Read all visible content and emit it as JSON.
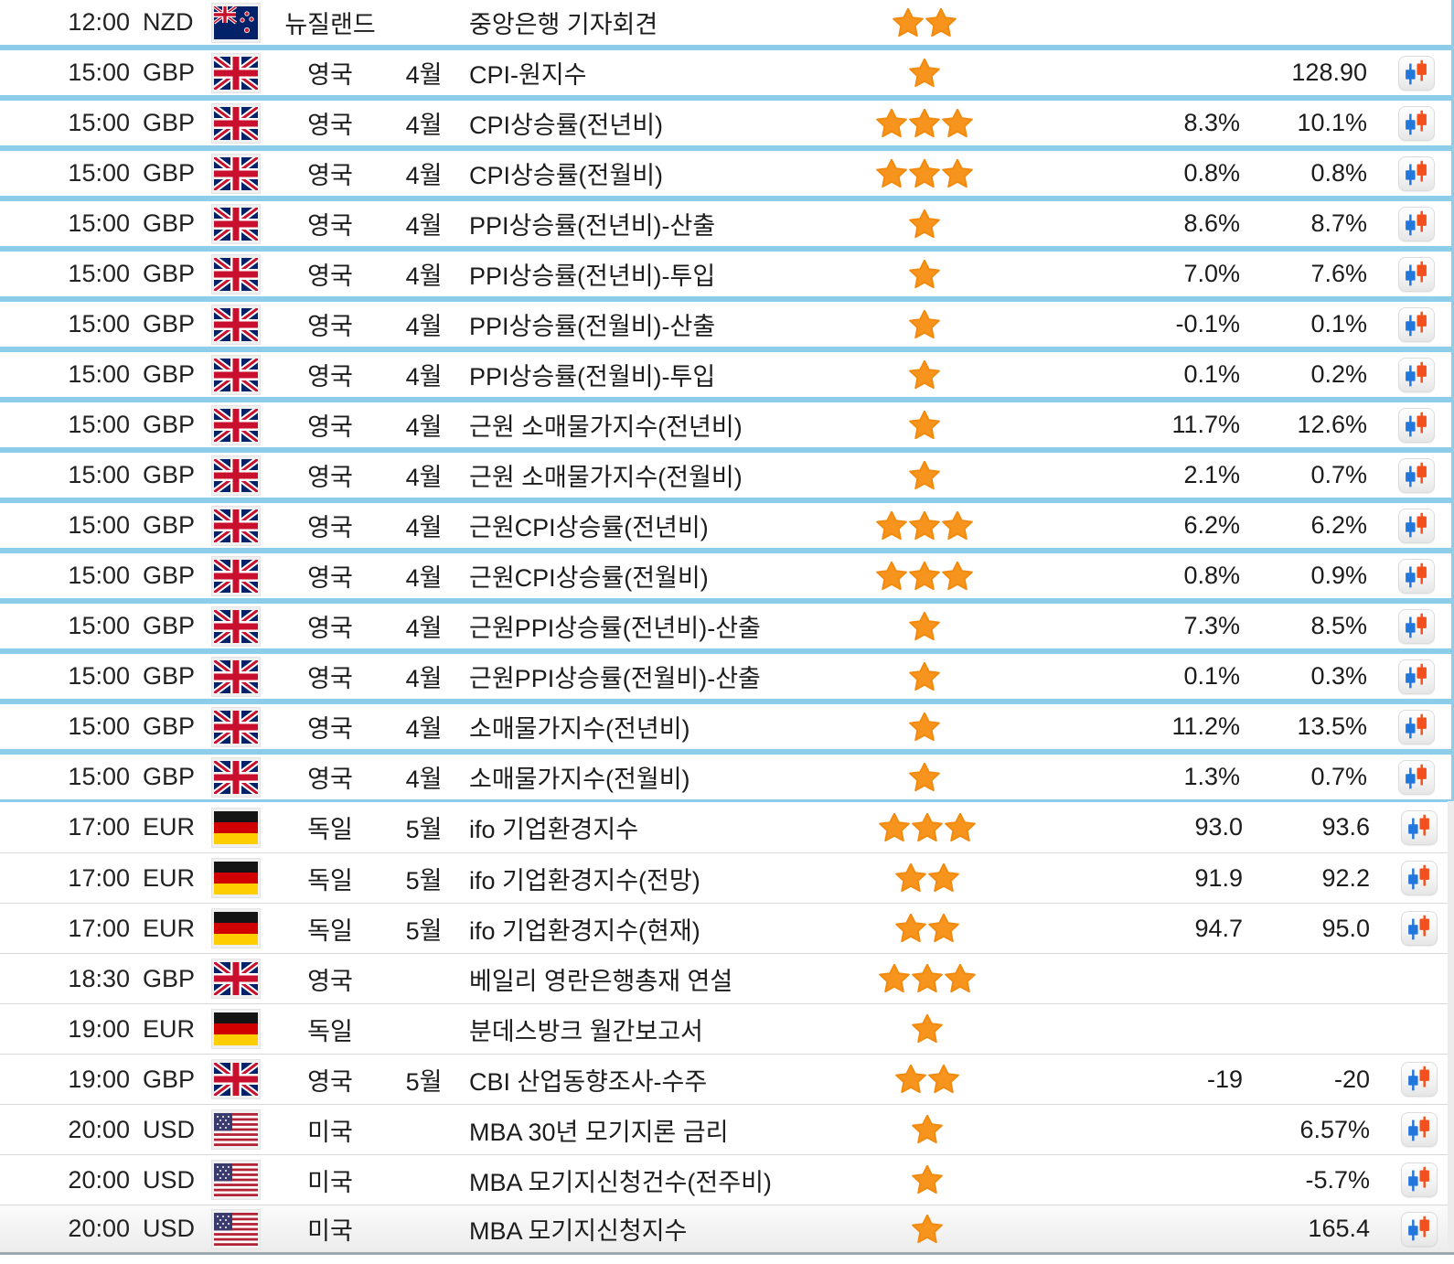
{
  "table": {
    "star_color": "#F7941D",
    "highlight_border_color": "#8DCDE9",
    "candle_blue_color": "#2277DD",
    "candle_orange_color": "#F4501E",
    "rows": [
      {
        "time": "12:00",
        "currency": "NZD",
        "flag": "new-zealand",
        "country": "뉴질랜드",
        "month": "",
        "event": "중앙은행 기자회견",
        "stars": 2,
        "forecast": "",
        "previous": "",
        "chart": false,
        "highlighted": true
      },
      {
        "time": "15:00",
        "currency": "GBP",
        "flag": "uk",
        "country": "영국",
        "month": "4월",
        "event": "CPI-원지수",
        "stars": 1,
        "forecast": "",
        "previous": "128.90",
        "chart": true,
        "highlighted": true
      },
      {
        "time": "15:00",
        "currency": "GBP",
        "flag": "uk",
        "country": "영국",
        "month": "4월",
        "event": "CPI상승률(전년비)",
        "stars": 3,
        "forecast": "8.3%",
        "previous": "10.1%",
        "chart": true,
        "highlighted": true
      },
      {
        "time": "15:00",
        "currency": "GBP",
        "flag": "uk",
        "country": "영국",
        "month": "4월",
        "event": "CPI상승률(전월비)",
        "stars": 3,
        "forecast": "0.8%",
        "previous": "0.8%",
        "chart": true,
        "highlighted": true
      },
      {
        "time": "15:00",
        "currency": "GBP",
        "flag": "uk",
        "country": "영국",
        "month": "4월",
        "event": "PPI상승률(전년비)-산출",
        "stars": 1,
        "forecast": "8.6%",
        "previous": "8.7%",
        "chart": true,
        "highlighted": true
      },
      {
        "time": "15:00",
        "currency": "GBP",
        "flag": "uk",
        "country": "영국",
        "month": "4월",
        "event": "PPI상승률(전년비)-투입",
        "stars": 1,
        "forecast": "7.0%",
        "previous": "7.6%",
        "chart": true,
        "highlighted": true
      },
      {
        "time": "15:00",
        "currency": "GBP",
        "flag": "uk",
        "country": "영국",
        "month": "4월",
        "event": "PPI상승률(전월비)-산출",
        "stars": 1,
        "forecast": "-0.1%",
        "previous": "0.1%",
        "chart": true,
        "highlighted": true
      },
      {
        "time": "15:00",
        "currency": "GBP",
        "flag": "uk",
        "country": "영국",
        "month": "4월",
        "event": "PPI상승률(전월비)-투입",
        "stars": 1,
        "forecast": "0.1%",
        "previous": "0.2%",
        "chart": true,
        "highlighted": true
      },
      {
        "time": "15:00",
        "currency": "GBP",
        "flag": "uk",
        "country": "영국",
        "month": "4월",
        "event": "근원 소매물가지수(전년비)",
        "stars": 1,
        "forecast": "11.7%",
        "previous": "12.6%",
        "chart": true,
        "highlighted": true
      },
      {
        "time": "15:00",
        "currency": "GBP",
        "flag": "uk",
        "country": "영국",
        "month": "4월",
        "event": "근원 소매물가지수(전월비)",
        "stars": 1,
        "forecast": "2.1%",
        "previous": "0.7%",
        "chart": true,
        "highlighted": true
      },
      {
        "time": "15:00",
        "currency": "GBP",
        "flag": "uk",
        "country": "영국",
        "month": "4월",
        "event": "근원CPI상승률(전년비)",
        "stars": 3,
        "forecast": "6.2%",
        "previous": "6.2%",
        "chart": true,
        "highlighted": true
      },
      {
        "time": "15:00",
        "currency": "GBP",
        "flag": "uk",
        "country": "영국",
        "month": "4월",
        "event": "근원CPI상승률(전월비)",
        "stars": 3,
        "forecast": "0.8%",
        "previous": "0.9%",
        "chart": true,
        "highlighted": true
      },
      {
        "time": "15:00",
        "currency": "GBP",
        "flag": "uk",
        "country": "영국",
        "month": "4월",
        "event": "근원PPI상승률(전년비)-산출",
        "stars": 1,
        "forecast": "7.3%",
        "previous": "8.5%",
        "chart": true,
        "highlighted": true
      },
      {
        "time": "15:00",
        "currency": "GBP",
        "flag": "uk",
        "country": "영국",
        "month": "4월",
        "event": "근원PPI상승률(전월비)-산출",
        "stars": 1,
        "forecast": "0.1%",
        "previous": "0.3%",
        "chart": true,
        "highlighted": true
      },
      {
        "time": "15:00",
        "currency": "GBP",
        "flag": "uk",
        "country": "영국",
        "month": "4월",
        "event": "소매물가지수(전년비)",
        "stars": 1,
        "forecast": "11.2%",
        "previous": "13.5%",
        "chart": true,
        "highlighted": true
      },
      {
        "time": "15:00",
        "currency": "GBP",
        "flag": "uk",
        "country": "영국",
        "month": "4월",
        "event": "소매물가지수(전월비)",
        "stars": 1,
        "forecast": "1.3%",
        "previous": "0.7%",
        "chart": true,
        "highlighted": true
      },
      {
        "time": "17:00",
        "currency": "EUR",
        "flag": "germany",
        "country": "독일",
        "month": "5월",
        "event": "ifo 기업환경지수",
        "stars": 3,
        "forecast": "93.0",
        "previous": "93.6",
        "chart": true,
        "highlighted": false
      },
      {
        "time": "17:00",
        "currency": "EUR",
        "flag": "germany",
        "country": "독일",
        "month": "5월",
        "event": "ifo 기업환경지수(전망)",
        "stars": 2,
        "forecast": "91.9",
        "previous": "92.2",
        "chart": true,
        "highlighted": false
      },
      {
        "time": "17:00",
        "currency": "EUR",
        "flag": "germany",
        "country": "독일",
        "month": "5월",
        "event": "ifo 기업환경지수(현재)",
        "stars": 2,
        "forecast": "94.7",
        "previous": "95.0",
        "chart": true,
        "highlighted": false
      },
      {
        "time": "18:30",
        "currency": "GBP",
        "flag": "uk",
        "country": "영국",
        "month": "",
        "event": "베일리 영란은행총재 연설",
        "stars": 3,
        "forecast": "",
        "previous": "",
        "chart": false,
        "highlighted": false
      },
      {
        "time": "19:00",
        "currency": "EUR",
        "flag": "germany",
        "country": "독일",
        "month": "",
        "event": "분데스방크 월간보고서",
        "stars": 1,
        "forecast": "",
        "previous": "",
        "chart": false,
        "highlighted": false
      },
      {
        "time": "19:00",
        "currency": "GBP",
        "flag": "uk",
        "country": "영국",
        "month": "5월",
        "event": "CBI 산업동향조사-수주",
        "stars": 2,
        "forecast": "-19",
        "previous": "-20",
        "chart": true,
        "highlighted": false
      },
      {
        "time": "20:00",
        "currency": "USD",
        "flag": "usa",
        "country": "미국",
        "month": "",
        "event": "MBA 30년 모기지론 금리",
        "stars": 1,
        "forecast": "",
        "previous": "6.57%",
        "chart": true,
        "highlighted": false
      },
      {
        "time": "20:00",
        "currency": "USD",
        "flag": "usa",
        "country": "미국",
        "month": "",
        "event": "MBA 모기지신청건수(전주비)",
        "stars": 1,
        "forecast": "",
        "previous": "-5.7%",
        "chart": true,
        "highlighted": false
      },
      {
        "time": "20:00",
        "currency": "USD",
        "flag": "usa",
        "country": "미국",
        "month": "",
        "event": "MBA 모기지신청지수",
        "stars": 1,
        "forecast": "",
        "previous": "165.4",
        "chart": true,
        "highlighted": false
      }
    ]
  }
}
